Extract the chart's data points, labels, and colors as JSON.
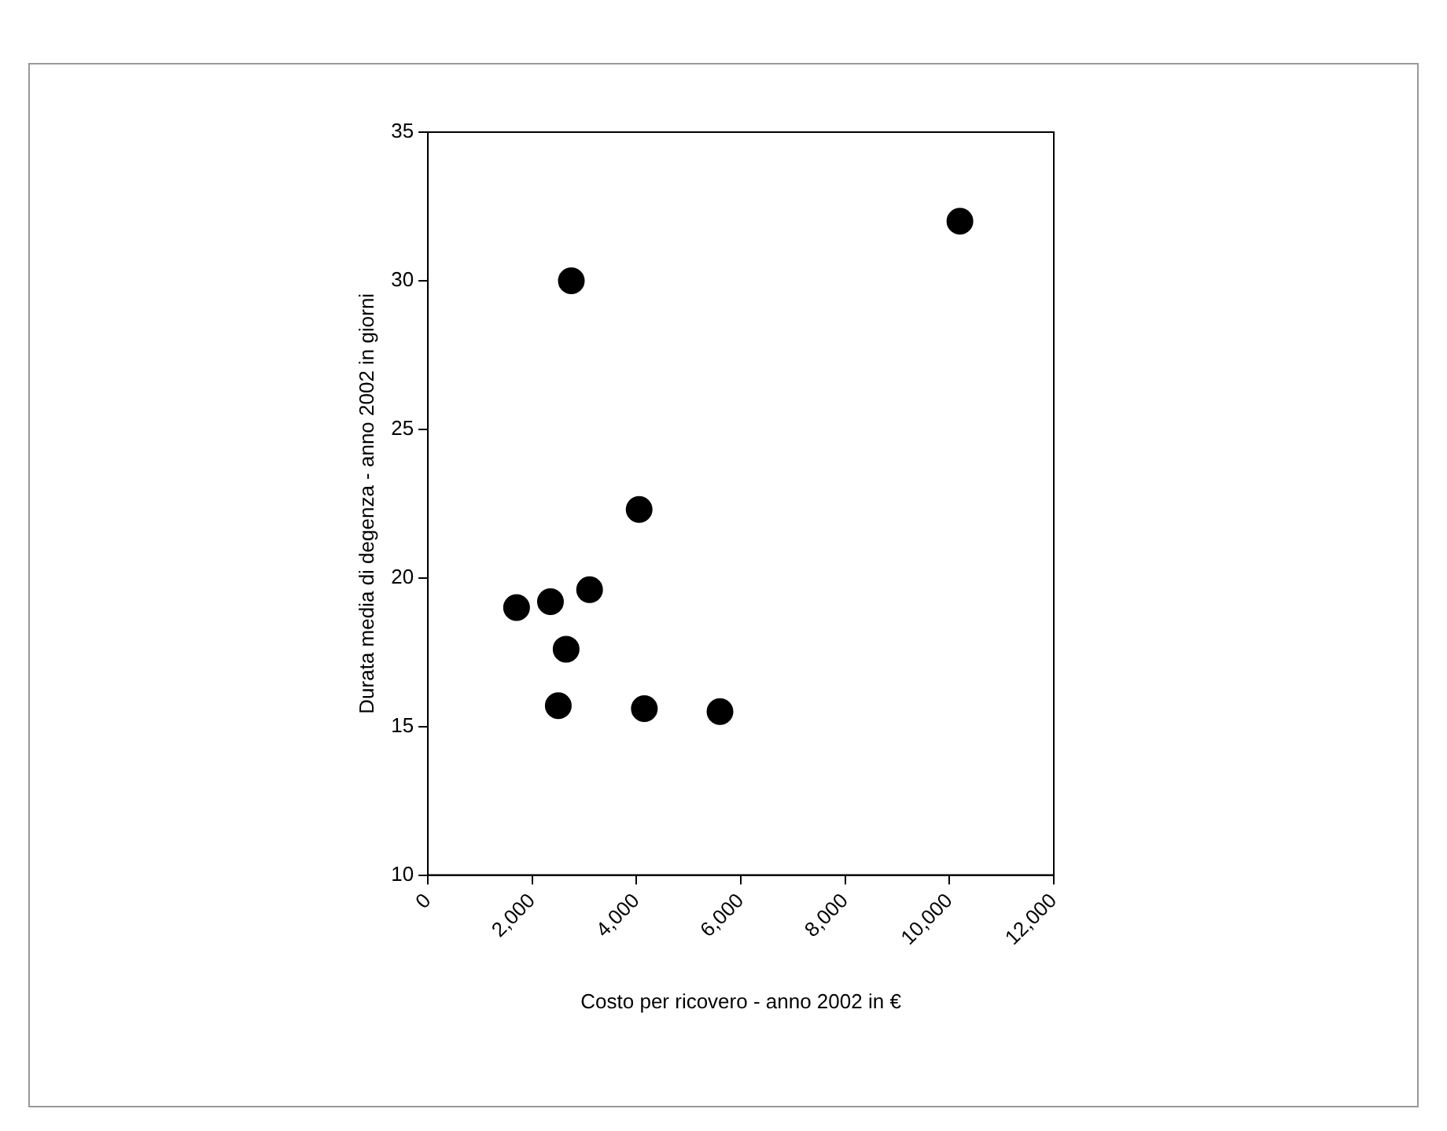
{
  "chart_data": {
    "type": "scatter",
    "xlabel": "Costo per ricovero - anno 2002 in €",
    "ylabel": "Durata media di degenza - anno 2002 in giorni",
    "x": [
      1700,
      2350,
      3100,
      2650,
      2500,
      2750,
      4050,
      4150,
      5600,
      10200
    ],
    "series": [
      {
        "color": "#000000",
        "values": [
          19.0,
          19.2,
          19.6,
          17.6,
          15.7,
          30.0,
          22.3,
          15.6,
          15.5,
          32.0
        ]
      }
    ],
    "xlim": [
      0,
      12000
    ],
    "xticks": [
      0,
      {
        "value": 2000,
        "label": "2,000"
      },
      {
        "value": 4000,
        "label": "4,000"
      },
      {
        "value": 6000,
        "label": "6,000"
      },
      {
        "value": 8000,
        "label": "8,000"
      },
      {
        "value": 10000,
        "label": "10,000"
      },
      {
        "value": 12000,
        "label": "12,000"
      }
    ],
    "ylim": [
      10,
      35
    ],
    "yticks": [
      10,
      15,
      20,
      25,
      30,
      35
    ],
    "grid": false,
    "legend": false,
    "marker": "circle"
  }
}
